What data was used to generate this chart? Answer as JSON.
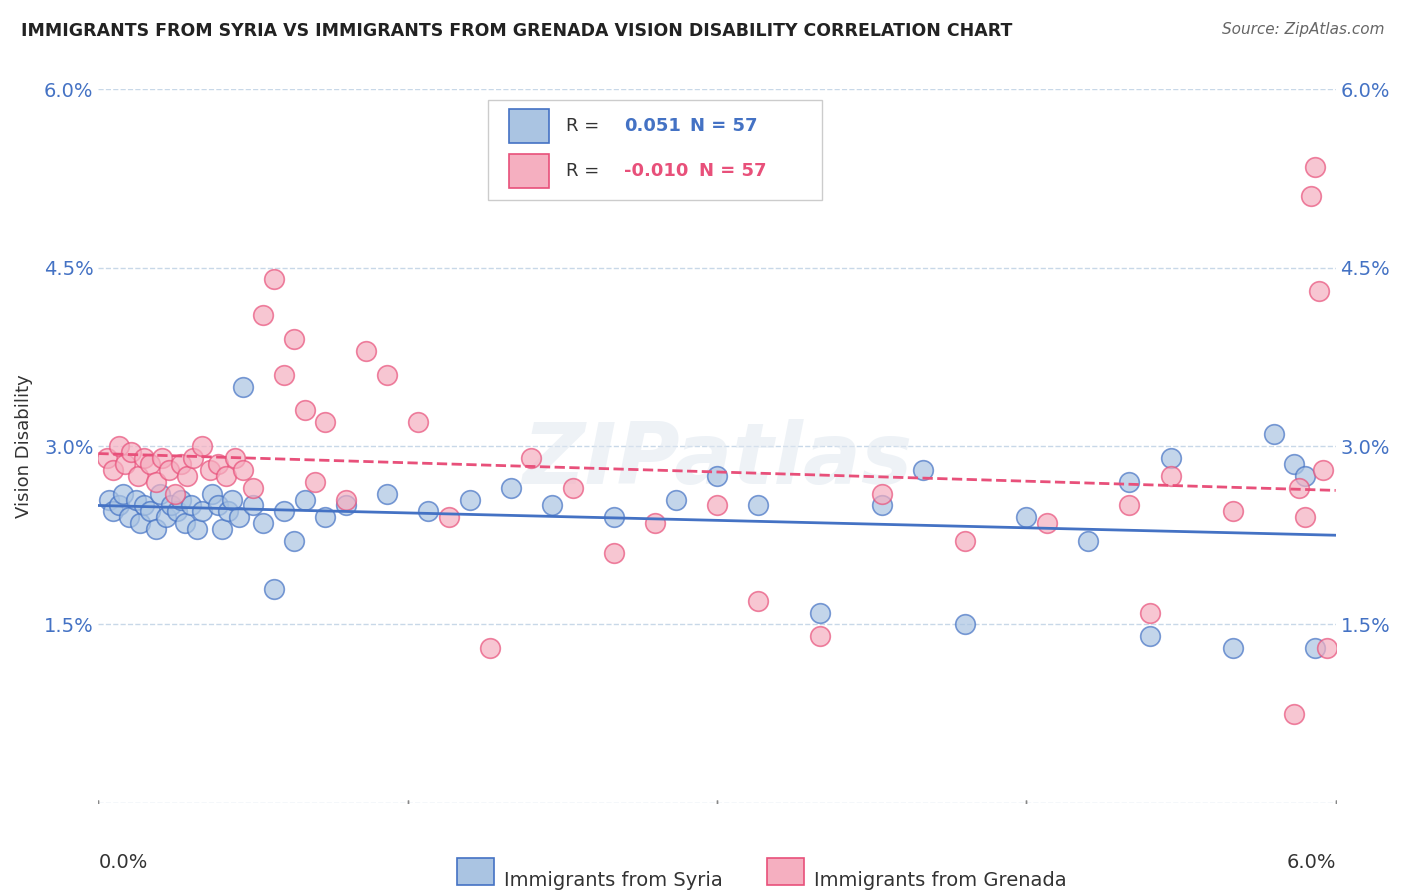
{
  "title": "IMMIGRANTS FROM SYRIA VS IMMIGRANTS FROM GRENADA VISION DISABILITY CORRELATION CHART",
  "source_text": "Source: ZipAtlas.com",
  "ylabel": "Vision Disability",
  "background_color": "#ffffff",
  "grid_color": "#c8d8e8",
  "syria_color": "#aac4e2",
  "grenada_color": "#f5afc0",
  "syria_line_color": "#4472c4",
  "grenada_line_color": "#e8507a",
  "legend_r_syria": "0.051",
  "legend_r_grenada": "-0.010",
  "legend_n": "57",
  "watermark": "ZIPatlas",
  "xlim": [
    0.0,
    6.0
  ],
  "ylim": [
    0.0,
    6.0
  ],
  "ytick_vals": [
    0.0,
    1.5,
    3.0,
    4.5,
    6.0
  ],
  "ytick_labels": [
    "",
    "1.5%",
    "3.0%",
    "4.5%",
    "6.0%"
  ],
  "syria_scatter_x": [
    0.05,
    0.07,
    0.1,
    0.12,
    0.15,
    0.18,
    0.2,
    0.22,
    0.25,
    0.28,
    0.3,
    0.33,
    0.35,
    0.38,
    0.4,
    0.42,
    0.45,
    0.48,
    0.5,
    0.55,
    0.58,
    0.6,
    0.63,
    0.65,
    0.68,
    0.7,
    0.75,
    0.8,
    0.85,
    0.9,
    0.95,
    1.0,
    1.1,
    1.2,
    1.4,
    1.6,
    1.8,
    2.0,
    2.2,
    2.5,
    2.8,
    3.0,
    3.2,
    3.5,
    3.8,
    4.0,
    4.2,
    4.5,
    4.8,
    5.0,
    5.1,
    5.2,
    5.5,
    5.7,
    5.8,
    5.85,
    5.9
  ],
  "syria_scatter_y": [
    2.55,
    2.45,
    2.5,
    2.6,
    2.4,
    2.55,
    2.35,
    2.5,
    2.45,
    2.3,
    2.6,
    2.4,
    2.5,
    2.45,
    2.55,
    2.35,
    2.5,
    2.3,
    2.45,
    2.6,
    2.5,
    2.3,
    2.45,
    2.55,
    2.4,
    3.5,
    2.5,
    2.35,
    1.8,
    2.45,
    2.2,
    2.55,
    2.4,
    2.5,
    2.6,
    2.45,
    2.55,
    2.65,
    2.5,
    2.4,
    2.55,
    2.75,
    2.5,
    1.6,
    2.5,
    2.8,
    1.5,
    2.4,
    2.2,
    2.7,
    1.4,
    2.9,
    1.3,
    3.1,
    2.85,
    2.75,
    1.3
  ],
  "grenada_scatter_x": [
    0.04,
    0.07,
    0.1,
    0.13,
    0.16,
    0.19,
    0.22,
    0.25,
    0.28,
    0.31,
    0.34,
    0.37,
    0.4,
    0.43,
    0.46,
    0.5,
    0.54,
    0.58,
    0.62,
    0.66,
    0.7,
    0.75,
    0.8,
    0.85,
    0.9,
    0.95,
    1.0,
    1.05,
    1.1,
    1.2,
    1.3,
    1.4,
    1.55,
    1.7,
    1.9,
    2.1,
    2.3,
    2.5,
    2.7,
    3.0,
    3.2,
    3.5,
    3.8,
    4.2,
    4.6,
    5.0,
    5.1,
    5.2,
    5.5,
    5.8,
    5.82,
    5.85,
    5.88,
    5.9,
    5.92,
    5.94,
    5.96
  ],
  "grenada_scatter_y": [
    2.9,
    2.8,
    3.0,
    2.85,
    2.95,
    2.75,
    2.9,
    2.85,
    2.7,
    2.9,
    2.8,
    2.6,
    2.85,
    2.75,
    2.9,
    3.0,
    2.8,
    2.85,
    2.75,
    2.9,
    2.8,
    2.65,
    4.1,
    4.4,
    3.6,
    3.9,
    3.3,
    2.7,
    3.2,
    2.55,
    3.8,
    3.6,
    3.2,
    2.4,
    1.3,
    2.9,
    2.65,
    2.1,
    2.35,
    2.5,
    1.7,
    1.4,
    2.6,
    2.2,
    2.35,
    2.5,
    1.6,
    2.75,
    2.45,
    0.75,
    2.65,
    2.4,
    5.1,
    5.35,
    4.3,
    2.8,
    1.3
  ]
}
